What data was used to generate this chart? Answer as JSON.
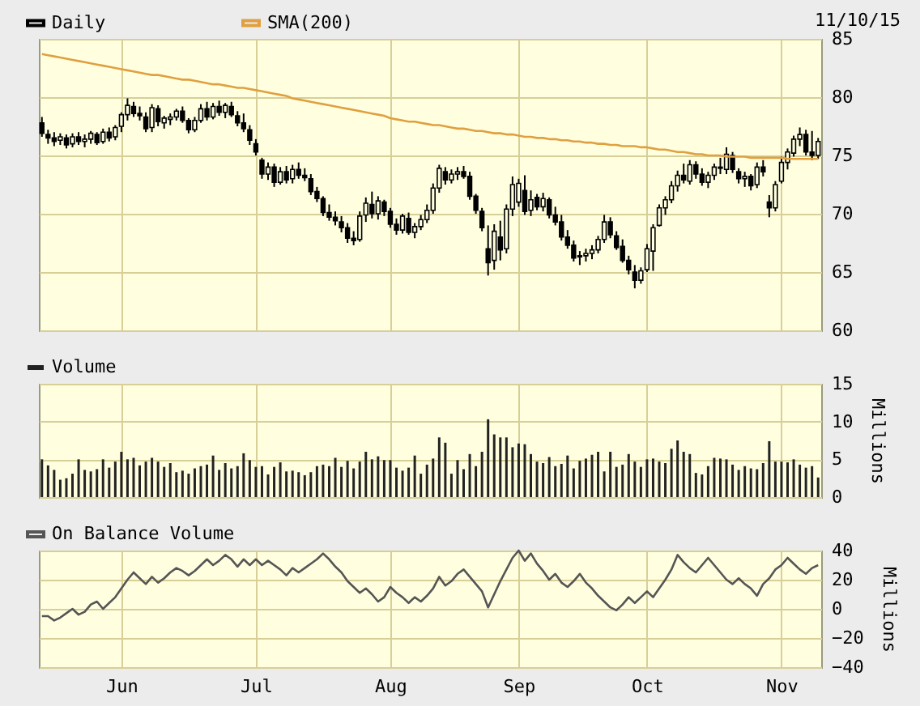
{
  "chart_data": [
    {
      "type": "candlestick",
      "annotations": [
        "11/10/15"
      ],
      "categories": [
        null,
        null,
        null,
        null,
        null,
        null,
        null,
        null,
        null,
        null,
        null,
        null,
        null,
        null,
        null,
        null,
        null,
        null,
        null,
        null,
        null,
        null,
        null,
        null,
        null,
        null,
        null,
        null,
        null,
        null,
        null,
        null,
        null,
        null,
        null,
        null,
        null,
        null,
        null,
        null,
        null,
        null,
        null,
        null,
        null,
        null,
        null,
        null,
        null,
        null,
        null,
        null,
        null,
        null,
        null,
        null,
        null,
        null,
        null,
        null,
        null,
        null,
        null,
        null,
        null,
        null,
        null,
        null,
        null,
        null,
        null,
        null,
        null,
        null,
        null,
        null,
        null,
        null,
        null,
        null,
        null,
        null,
        null,
        null,
        null,
        null,
        null,
        null,
        null,
        null,
        null,
        null,
        null,
        null,
        null,
        null,
        null,
        null,
        null,
        null,
        null,
        null,
        null,
        null,
        null,
        null,
        null,
        null,
        null,
        null,
        null,
        null,
        null,
        null,
        null,
        null,
        null,
        null,
        null,
        null,
        null,
        null,
        null,
        null,
        null,
        null,
        null,
        null
      ],
      "ylim": [
        60,
        85
      ],
      "yticks": [
        60,
        65,
        70,
        75,
        80,
        85
      ],
      "grid": true,
      "legend": "top left",
      "tick_labels": "y",
      "series": [
        {
          "name": "Daily",
          "type": "candlestick",
          "color": "#000000",
          "ohlc": [
            [
              77.8,
              78.3,
              76.6,
              76.9
            ],
            [
              76.8,
              77.2,
              76.0,
              76.5
            ],
            [
              76.5,
              77.0,
              75.8,
              76.2
            ],
            [
              76.3,
              76.9,
              75.9,
              76.6
            ],
            [
              76.5,
              76.8,
              75.6,
              75.9
            ],
            [
              76.0,
              76.9,
              75.7,
              76.6
            ],
            [
              76.6,
              77.0,
              75.9,
              76.2
            ],
            [
              76.2,
              76.8,
              75.7,
              76.4
            ],
            [
              76.4,
              77.1,
              76.0,
              76.9
            ],
            [
              76.8,
              77.0,
              75.9,
              76.1
            ],
            [
              76.2,
              77.3,
              76.0,
              77.0
            ],
            [
              77.0,
              77.4,
              76.2,
              76.5
            ],
            [
              76.6,
              77.6,
              76.3,
              77.4
            ],
            [
              77.5,
              78.7,
              77.0,
              78.5
            ],
            [
              78.5,
              79.9,
              78.0,
              79.3
            ],
            [
              79.2,
              79.6,
              78.3,
              78.6
            ],
            [
              78.6,
              79.2,
              78.0,
              78.4
            ],
            [
              78.3,
              78.7,
              77.0,
              77.3
            ],
            [
              77.4,
              79.4,
              77.0,
              79.1
            ],
            [
              79.0,
              79.3,
              77.5,
              77.9
            ],
            [
              77.8,
              78.4,
              77.3,
              78.2
            ],
            [
              78.1,
              78.6,
              77.6,
              78.3
            ],
            [
              78.3,
              79.0,
              78.0,
              78.8
            ],
            [
              78.8,
              79.2,
              77.8,
              78.0
            ],
            [
              78.0,
              78.2,
              76.9,
              77.2
            ],
            [
              77.2,
              78.3,
              77.0,
              78.0
            ],
            [
              78.0,
              79.4,
              77.8,
              79.0
            ],
            [
              79.0,
              79.6,
              78.0,
              78.3
            ],
            [
              78.3,
              79.5,
              78.1,
              79.2
            ],
            [
              79.2,
              79.7,
              78.4,
              78.7
            ],
            [
              78.7,
              79.5,
              78.2,
              79.3
            ],
            [
              79.2,
              79.6,
              78.3,
              78.5
            ],
            [
              78.4,
              78.8,
              77.5,
              77.8
            ],
            [
              77.8,
              78.6,
              77.0,
              77.3
            ],
            [
              77.2,
              77.6,
              75.9,
              76.3
            ],
            [
              76.0,
              76.4,
              75.0,
              75.3
            ],
            [
              74.6,
              74.8,
              73.0,
              73.4
            ],
            [
              73.4,
              74.4,
              72.9,
              74.0
            ],
            [
              74.0,
              74.3,
              72.3,
              72.7
            ],
            [
              72.7,
              74.0,
              72.5,
              73.6
            ],
            [
              73.6,
              74.1,
              72.6,
              72.9
            ],
            [
              73.0,
              74.2,
              72.6,
              73.8
            ],
            [
              73.8,
              74.4,
              73.0,
              73.3
            ],
            [
              73.3,
              73.9,
              72.8,
              73.1
            ],
            [
              73.0,
              73.4,
              71.6,
              71.9
            ],
            [
              71.9,
              72.3,
              71.0,
              71.3
            ],
            [
              71.3,
              71.5,
              69.8,
              70.1
            ],
            [
              70.1,
              70.8,
              69.4,
              69.7
            ],
            [
              69.7,
              70.2,
              69.0,
              69.4
            ],
            [
              69.3,
              69.8,
              68.4,
              68.8
            ],
            [
              68.8,
              69.2,
              67.5,
              67.9
            ],
            [
              67.9,
              68.5,
              67.3,
              67.7
            ],
            [
              67.8,
              70.2,
              67.6,
              69.8
            ],
            [
              69.9,
              71.4,
              69.3,
              70.9
            ],
            [
              70.8,
              71.9,
              69.6,
              70.0
            ],
            [
              70.0,
              71.5,
              69.5,
              71.1
            ],
            [
              71.0,
              71.2,
              69.8,
              70.2
            ],
            [
              70.2,
              70.5,
              68.8,
              69.1
            ],
            [
              69.1,
              69.6,
              68.2,
              68.6
            ],
            [
              68.6,
              70.0,
              68.3,
              69.8
            ],
            [
              69.6,
              70.1,
              68.2,
              68.4
            ],
            [
              68.4,
              69.2,
              67.9,
              68.9
            ],
            [
              68.9,
              69.9,
              68.6,
              69.5
            ],
            [
              69.5,
              70.8,
              69.2,
              70.3
            ],
            [
              70.3,
              72.6,
              70.0,
              72.2
            ],
            [
              72.2,
              74.2,
              71.8,
              73.9
            ],
            [
              73.6,
              74.0,
              72.5,
              72.9
            ],
            [
              72.9,
              73.8,
              72.6,
              73.4
            ],
            [
              73.4,
              74.0,
              72.9,
              73.6
            ],
            [
              73.6,
              74.1,
              73.0,
              73.2
            ],
            [
              73.2,
              73.6,
              71.2,
              71.5
            ],
            [
              71.5,
              71.7,
              70.0,
              70.3
            ],
            [
              70.2,
              70.5,
              68.5,
              68.8
            ],
            [
              67.0,
              69.0,
              64.7,
              65.8
            ],
            [
              66.0,
              69.1,
              65.2,
              68.5
            ],
            [
              68.0,
              69.4,
              66.0,
              66.9
            ],
            [
              67.0,
              70.8,
              66.6,
              70.4
            ],
            [
              70.4,
              73.2,
              69.8,
              72.5
            ],
            [
              71.0,
              73.0,
              70.6,
              72.6
            ],
            [
              72.0,
              73.3,
              69.9,
              70.2
            ],
            [
              70.3,
              72.0,
              69.8,
              71.2
            ],
            [
              71.4,
              71.7,
              70.3,
              70.6
            ],
            [
              70.6,
              71.8,
              70.2,
              71.3
            ],
            [
              71.2,
              71.4,
              69.6,
              69.9
            ],
            [
              69.9,
              70.6,
              69.0,
              69.3
            ],
            [
              69.3,
              69.9,
              67.7,
              68.0
            ],
            [
              68.0,
              68.6,
              67.0,
              67.3
            ],
            [
              67.3,
              67.7,
              65.9,
              66.2
            ],
            [
              66.3,
              66.8,
              65.6,
              66.4
            ],
            [
              66.4,
              67.0,
              65.9,
              66.6
            ],
            [
              66.6,
              67.3,
              66.1,
              66.9
            ],
            [
              66.9,
              68.1,
              66.6,
              67.8
            ],
            [
              67.8,
              69.9,
              67.5,
              69.3
            ],
            [
              69.3,
              69.7,
              67.9,
              68.2
            ],
            [
              68.1,
              68.5,
              66.9,
              67.1
            ],
            [
              67.2,
              67.8,
              65.8,
              66.0
            ],
            [
              66.0,
              66.4,
              64.8,
              65.2
            ],
            [
              65.0,
              65.6,
              63.6,
              64.3
            ],
            [
              64.3,
              65.4,
              64.0,
              65.1
            ],
            [
              65.2,
              67.4,
              65.0,
              67.0
            ],
            [
              66.8,
              69.1,
              65.1,
              68.8
            ],
            [
              69.0,
              70.8,
              68.9,
              70.5
            ],
            [
              70.5,
              71.5,
              69.9,
              71.2
            ],
            [
              71.2,
              72.8,
              70.9,
              72.4
            ],
            [
              72.4,
              73.7,
              71.9,
              73.3
            ],
            [
              73.3,
              74.3,
              72.6,
              72.9
            ],
            [
              72.8,
              74.6,
              72.5,
              74.2
            ],
            [
              74.2,
              74.5,
              73.0,
              73.4
            ],
            [
              73.4,
              73.9,
              72.4,
              72.7
            ],
            [
              72.7,
              73.6,
              72.2,
              73.3
            ],
            [
              73.3,
              74.3,
              72.9,
              74.0
            ],
            [
              74.0,
              74.8,
              73.4,
              73.9
            ],
            [
              73.8,
              75.7,
              73.4,
              75.1
            ],
            [
              75.0,
              75.3,
              73.5,
              73.8
            ],
            [
              73.6,
              73.9,
              72.6,
              73.0
            ],
            [
              73.0,
              73.6,
              72.3,
              73.2
            ],
            [
              73.2,
              73.4,
              72.0,
              72.4
            ],
            [
              72.5,
              74.4,
              72.2,
              74.0
            ],
            [
              74.0,
              74.6,
              73.2,
              73.6
            ],
            [
              71.0,
              71.6,
              69.7,
              70.5
            ],
            [
              70.5,
              72.8,
              70.2,
              72.5
            ],
            [
              72.8,
              74.9,
              72.6,
              74.4
            ],
            [
              74.4,
              75.6,
              73.8,
              75.3
            ],
            [
              75.2,
              76.7,
              74.9,
              76.4
            ],
            [
              76.4,
              77.4,
              75.8,
              76.8
            ],
            [
              76.8,
              77.2,
              75.0,
              75.3
            ],
            [
              75.3,
              77.1,
              74.6,
              75.0
            ],
            [
              75.0,
              76.5,
              74.7,
              76.2
            ]
          ]
        },
        {
          "name": "SMA(200)",
          "type": "line",
          "color": "#e0a040",
          "values": [
            83.7,
            83.6,
            83.5,
            83.4,
            83.3,
            83.2,
            83.1,
            83.0,
            82.9,
            82.8,
            82.7,
            82.6,
            82.5,
            82.4,
            82.3,
            82.2,
            82.1,
            82.0,
            81.9,
            81.9,
            81.8,
            81.7,
            81.6,
            81.5,
            81.5,
            81.4,
            81.3,
            81.2,
            81.1,
            81.1,
            81.0,
            80.9,
            80.8,
            80.8,
            80.7,
            80.6,
            80.5,
            80.4,
            80.3,
            80.2,
            80.1,
            79.9,
            79.8,
            79.7,
            79.6,
            79.5,
            79.4,
            79.3,
            79.2,
            79.1,
            79.0,
            78.9,
            78.8,
            78.7,
            78.6,
            78.5,
            78.4,
            78.2,
            78.1,
            78.0,
            77.9,
            77.9,
            77.8,
            77.7,
            77.6,
            77.6,
            77.5,
            77.4,
            77.3,
            77.3,
            77.2,
            77.1,
            77.1,
            77.0,
            76.9,
            76.9,
            76.8,
            76.8,
            76.7,
            76.6,
            76.6,
            76.5,
            76.5,
            76.4,
            76.4,
            76.3,
            76.3,
            76.2,
            76.2,
            76.1,
            76.1,
            76.0,
            76.0,
            75.9,
            75.9,
            75.8,
            75.8,
            75.8,
            75.7,
            75.7,
            75.6,
            75.5,
            75.5,
            75.4,
            75.3,
            75.3,
            75.2,
            75.1,
            75.1,
            75.0,
            75.0,
            75.0,
            74.9,
            74.9,
            74.9,
            74.9,
            74.8,
            74.8,
            74.8,
            74.8,
            74.8,
            74.8,
            74.7,
            74.7,
            74.7,
            74.7,
            74.7,
            74.7
          ]
        }
      ]
    },
    {
      "type": "bar",
      "categories": [
        null,
        null,
        null,
        null,
        null,
        null,
        null,
        null,
        null,
        null,
        null,
        null,
        null,
        null,
        null,
        null,
        null,
        null,
        null,
        null,
        null,
        null,
        null,
        null,
        null,
        null,
        null,
        null,
        null,
        null,
        null,
        null,
        null,
        null,
        null,
        null,
        null,
        null,
        null,
        null,
        null,
        null,
        null,
        null,
        null,
        null,
        null,
        null,
        null,
        null,
        null,
        null,
        null,
        null,
        null,
        null,
        null,
        null,
        null,
        null,
        null,
        null,
        null,
        null,
        null,
        null,
        null,
        null,
        null,
        null,
        null,
        null,
        null,
        null,
        null,
        null,
        null,
        null,
        null,
        null,
        null,
        null,
        null,
        null,
        null,
        null,
        null,
        null,
        null,
        null,
        null,
        null,
        null,
        null,
        null,
        null,
        null,
        null,
        null,
        null,
        null,
        null,
        null,
        null,
        null,
        null,
        null,
        null,
        null,
        null,
        null,
        null,
        null,
        null,
        null,
        null,
        null,
        null,
        null,
        null,
        null,
        null,
        null,
        null,
        null,
        null,
        null,
        null
      ],
      "ylabel": "Millions",
      "ylim": [
        0,
        15
      ],
      "yticks": [
        0,
        5,
        10,
        15
      ],
      "grid": true,
      "legend": "top left",
      "tick_labels": "y",
      "series": [
        {
          "name": "Volume",
          "color": "#222222",
          "values": [
            5.0,
            4.2,
            3.6,
            2.3,
            2.5,
            3.1,
            5.0,
            3.6,
            3.4,
            3.7,
            5.0,
            3.9,
            4.7,
            6.0,
            5.0,
            5.2,
            4.2,
            4.7,
            5.2,
            4.7,
            4.0,
            4.5,
            3.3,
            3.5,
            3.1,
            3.8,
            4.1,
            4.3,
            5.5,
            3.6,
            4.5,
            3.8,
            4.1,
            5.8,
            4.9,
            4.0,
            4.1,
            3.0,
            4.0,
            4.6,
            3.4,
            3.5,
            3.3,
            2.9,
            3.3,
            4.1,
            4.3,
            4.1,
            5.2,
            4.0,
            4.8,
            3.8,
            4.7,
            6.0,
            5.0,
            5.4,
            4.9,
            4.9,
            3.9,
            3.5,
            3.9,
            5.5,
            3.1,
            4.3,
            5.1,
            7.9,
            7.2,
            3.1,
            4.9,
            3.7,
            5.7,
            4.1,
            6.0,
            10.3,
            8.3,
            7.9,
            7.9,
            6.6,
            7.1,
            7.0,
            5.7,
            4.7,
            4.5,
            5.3,
            4.1,
            4.4,
            5.5,
            3.8,
            4.8,
            5.1,
            5.6,
            6.0,
            3.4,
            6.0,
            4.0,
            4.3,
            5.7,
            4.7,
            4.0,
            5.0,
            5.1,
            4.7,
            4.5,
            6.4,
            7.5,
            6.0,
            5.7,
            3.2,
            3.0,
            4.1,
            5.2,
            5.1,
            5.0,
            4.3,
            3.6,
            4.1,
            3.8,
            3.7,
            4.5,
            7.4,
            4.7,
            4.7,
            4.6,
            5.0,
            4.3,
            3.9,
            4.1,
            2.6
          ]
        }
      ]
    },
    {
      "type": "line",
      "categories": [
        null,
        null,
        null,
        null,
        null,
        null,
        null,
        null,
        null,
        null,
        null,
        null,
        null,
        "Jun",
        null,
        null,
        null,
        null,
        null,
        null,
        null,
        null,
        null,
        null,
        null,
        null,
        null,
        null,
        null,
        null,
        null,
        null,
        null,
        null,
        null,
        "Jul",
        null,
        null,
        null,
        null,
        null,
        null,
        null,
        null,
        null,
        null,
        null,
        null,
        null,
        null,
        null,
        null,
        null,
        null,
        null,
        null,
        null,
        "Aug",
        null,
        null,
        null,
        null,
        null,
        null,
        null,
        null,
        null,
        null,
        null,
        null,
        null,
        null,
        null,
        null,
        null,
        null,
        null,
        null,
        "Sep",
        null,
        null,
        null,
        null,
        null,
        null,
        null,
        null,
        null,
        null,
        null,
        null,
        null,
        null,
        null,
        null,
        null,
        null,
        null,
        null,
        "Oct",
        null,
        null,
        null,
        null,
        null,
        null,
        null,
        null,
        null,
        null,
        null,
        null,
        null,
        null,
        null,
        null,
        null,
        null,
        null,
        null,
        null,
        "Nov",
        null,
        null,
        null,
        null,
        null,
        null
      ],
      "ylabel": "Millions",
      "ylim": [
        -40,
        40
      ],
      "yticks": [
        -40,
        -20,
        0,
        20,
        40
      ],
      "grid": true,
      "legend": "top left",
      "series": [
        {
          "name": "On Balance Volume",
          "color": "#555555",
          "values": [
            -5,
            -5,
            -8,
            -6,
            -3,
            0,
            -4,
            -2,
            3,
            5,
            0,
            4,
            8,
            14,
            20,
            25,
            21,
            17,
            22,
            18,
            21,
            25,
            28,
            26,
            23,
            26,
            30,
            34,
            30,
            33,
            37,
            34,
            29,
            34,
            30,
            34,
            30,
            33,
            30,
            27,
            23,
            28,
            25,
            28,
            31,
            34,
            38,
            34,
            29,
            25,
            19,
            15,
            11,
            14,
            10,
            5,
            8,
            15,
            11,
            8,
            4,
            8,
            5,
            9,
            14,
            22,
            16,
            19,
            24,
            27,
            22,
            17,
            12,
            1,
            10,
            19,
            27,
            35,
            40,
            33,
            38,
            31,
            26,
            20,
            24,
            18,
            15,
            19,
            24,
            18,
            14,
            9,
            5,
            1,
            -1,
            3,
            8,
            4,
            8,
            12,
            8,
            14,
            20,
            27,
            37,
            32,
            28,
            25,
            30,
            35,
            30,
            25,
            20,
            17,
            21,
            17,
            14,
            9,
            17,
            21,
            27,
            30,
            35,
            31,
            27,
            24,
            28,
            30
          ]
        }
      ]
    }
  ]
}
